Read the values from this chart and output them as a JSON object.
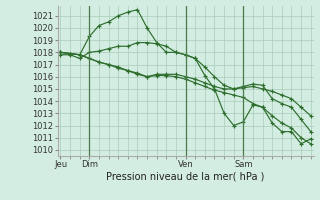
{
  "background_color": "#d4ede2",
  "grid_color": "#a8ccb8",
  "line_color": "#2d6e2d",
  "xlabel": "Pression niveau de la mer( hPa )",
  "ylim": [
    1009.5,
    1021.8
  ],
  "yticks": [
    1010,
    1011,
    1012,
    1013,
    1014,
    1015,
    1016,
    1017,
    1018,
    1019,
    1020,
    1021
  ],
  "xtick_labels": [
    "Jeu",
    "Dim",
    "Ven",
    "Sam"
  ],
  "xtick_positions": [
    0,
    3,
    13,
    19
  ],
  "vline_positions": [
    3,
    13,
    19
  ],
  "total_points": 27,
  "series": [
    [
      1018.0,
      1017.9,
      1017.8,
      1019.3,
      1020.2,
      1020.5,
      1021.0,
      1021.3,
      1021.5,
      1020.0,
      1018.8,
      1018.0,
      1018.0,
      1017.8,
      1017.5,
      1016.1,
      1015.0,
      1013.0,
      1012.0,
      1012.3,
      1013.7,
      1013.5,
      1012.2,
      1011.5,
      1011.5,
      1010.5,
      1010.9
    ],
    [
      1017.8,
      1017.8,
      1017.5,
      1018.0,
      1018.1,
      1018.3,
      1018.5,
      1018.5,
      1018.8,
      1018.8,
      1018.7,
      1018.5,
      1018.0,
      1017.8,
      1017.5,
      1016.8,
      1016.0,
      1015.3,
      1015.0,
      1015.2,
      1015.4,
      1015.3,
      1014.2,
      1013.8,
      1013.5,
      1012.5,
      1011.5
    ],
    [
      1018.0,
      1017.9,
      1017.8,
      1017.5,
      1017.2,
      1017.0,
      1016.8,
      1016.5,
      1016.3,
      1016.0,
      1016.2,
      1016.2,
      1016.2,
      1016.0,
      1015.8,
      1015.5,
      1015.2,
      1015.0,
      1015.0,
      1015.1,
      1015.2,
      1015.0,
      1014.8,
      1014.5,
      1014.2,
      1013.5,
      1012.8
    ],
    [
      1018.0,
      1017.9,
      1017.8,
      1017.5,
      1017.2,
      1017.0,
      1016.7,
      1016.5,
      1016.2,
      1016.0,
      1016.1,
      1016.1,
      1016.0,
      1015.8,
      1015.5,
      1015.2,
      1014.9,
      1014.7,
      1014.5,
      1014.3,
      1013.8,
      1013.5,
      1012.8,
      1012.2,
      1011.8,
      1011.0,
      1010.5
    ]
  ]
}
